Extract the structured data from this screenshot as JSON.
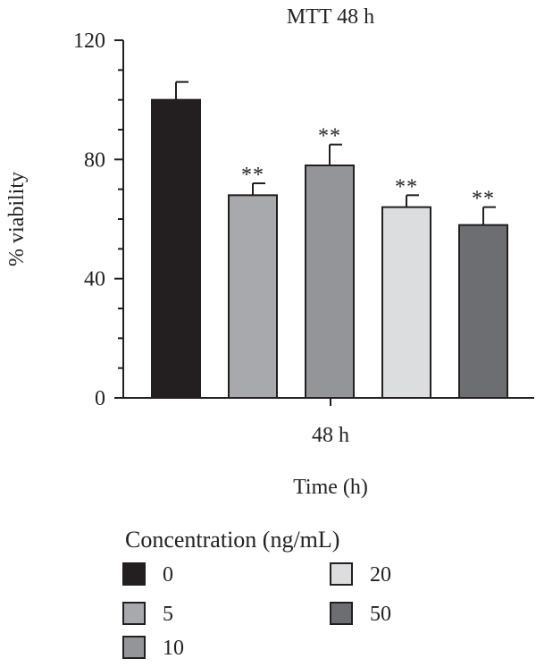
{
  "chart_data": {
    "type": "bar",
    "title": "MTT 48 h",
    "xlabel": "Time (h)",
    "ylabel": "% viability",
    "categories": [
      "48 h"
    ],
    "ylim": [
      0,
      120
    ],
    "yticks": [
      0,
      40,
      80,
      120
    ],
    "grid": false,
    "legend": {
      "title": "Concentration (ng/mL)",
      "placement": "bottom"
    },
    "series": [
      {
        "name": "0",
        "value": 100,
        "error": 6,
        "annotation": "",
        "color": "#231f20"
      },
      {
        "name": "5",
        "value": 68,
        "error": 4,
        "annotation": "**",
        "color": "#a7a9ac"
      },
      {
        "name": "10",
        "value": 78,
        "error": 7,
        "annotation": "**",
        "color": "#939598"
      },
      {
        "name": "20",
        "value": 64,
        "error": 4,
        "annotation": "**",
        "color": "#dcddde"
      },
      {
        "name": "50",
        "value": 58,
        "error": 6,
        "annotation": "**",
        "color": "#6d6e71"
      }
    ]
  }
}
